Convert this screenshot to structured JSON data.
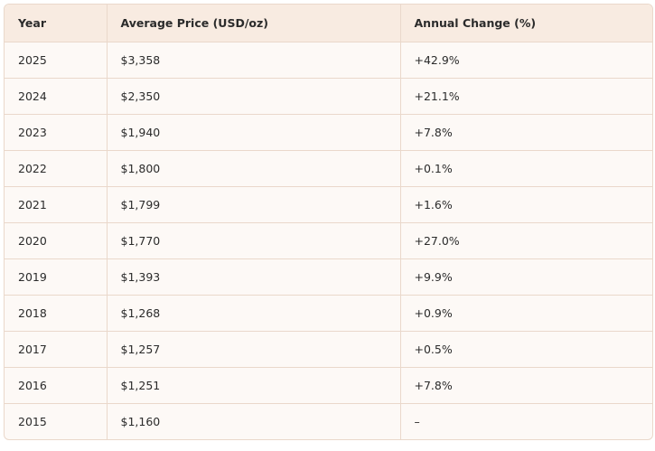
{
  "table": {
    "header": [
      "Year",
      "Average Price (USD/oz)",
      "Annual Change (%)"
    ],
    "rows": [
      [
        "2025",
        "$3,358",
        "+42.9%"
      ],
      [
        "2024",
        "$2,350",
        "+21.1%"
      ],
      [
        "2023",
        "$1,940",
        "+7.8%"
      ],
      [
        "2022",
        "$1,800",
        "+0.1%"
      ],
      [
        "2021",
        "$1,799",
        "+1.6%"
      ],
      [
        "2020",
        "$1,770",
        "+27.0%"
      ],
      [
        "2019",
        "$1,393",
        "+9.9%"
      ],
      [
        "2018",
        "$1,268",
        "+0.9%"
      ],
      [
        "2017",
        "$1,257",
        "+0.5%"
      ],
      [
        "2016",
        "$1,251",
        "+7.8%"
      ],
      [
        "2015",
        "$1,160",
        "–"
      ]
    ]
  }
}
